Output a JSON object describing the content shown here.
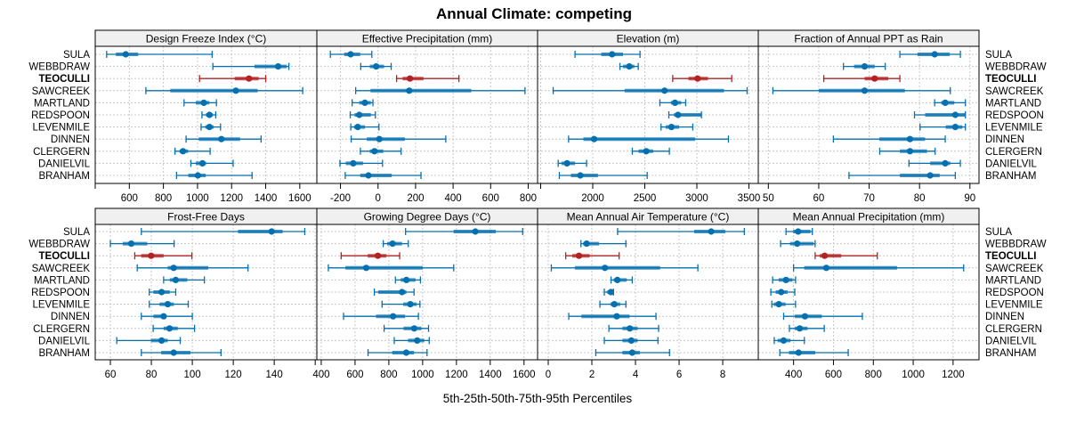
{
  "chart_data": {
    "type": "dot-interval",
    "title": "Annual Climate: competing",
    "xlabel": "5th-25th-50th-75th-95th Percentiles",
    "sites": [
      "SULA",
      "WEBBDRAW",
      "TEOCULLI",
      "SAWCREEK",
      "MARTLAND",
      "REDSPOON",
      "LEVENMILE",
      "DINNEN",
      "CLERGERN",
      "DANIELVIL",
      "BRANHAM"
    ],
    "highlight_site": "TEOCULLI",
    "colors": {
      "default": "#0570b0",
      "highlight": "#b22222",
      "strip": "#f0f0f0",
      "grid": "#c8c8c8"
    },
    "percentile_order": [
      "p5",
      "p25",
      "p50",
      "p75",
      "p95"
    ],
    "panels": [
      {
        "title": "Design Freeze Index (°C)",
        "xlim": [
          400,
          1700
        ],
        "ticks": [
          400,
          600,
          800,
          1000,
          1200,
          1400,
          1600
        ],
        "tick_labels": [
          "",
          "600",
          "800",
          "1000",
          "1200",
          "1400",
          "1600"
        ],
        "values": [
          [
            467,
            521,
            579,
            652,
            1086
          ],
          [
            1090,
            1334,
            1473,
            1524,
            1536
          ],
          [
            1012,
            1218,
            1302,
            1359,
            1400
          ],
          [
            697,
            840,
            1225,
            1353,
            1617
          ],
          [
            921,
            990,
            1037,
            1070,
            1111
          ],
          [
            1026,
            1050,
            1070,
            1090,
            1107
          ],
          [
            1021,
            1045,
            1070,
            1095,
            1135
          ],
          [
            933,
            1007,
            1140,
            1250,
            1373
          ],
          [
            868,
            895,
            915,
            945,
            1074
          ],
          [
            961,
            990,
            1029,
            1050,
            1209
          ],
          [
            877,
            946,
            1002,
            1048,
            1320
          ]
        ]
      },
      {
        "title": "Effective Precipitation (mm)",
        "xlim": [
          -326,
          850
        ],
        "ticks": [
          -200,
          0,
          200,
          400,
          600,
          800
        ],
        "tick_labels": [
          "-200",
          "0",
          "200",
          "400",
          "600",
          "800"
        ],
        "values": [
          [
            -254,
            -180,
            -146,
            -95,
            -33
          ],
          [
            -92,
            -44,
            -10,
            32,
            70
          ],
          [
            99,
            131,
            170,
            242,
            431
          ],
          [
            -119,
            -40,
            166,
            497,
            783
          ],
          [
            -138,
            -100,
            -70,
            -38,
            -27
          ],
          [
            -148,
            -125,
            -100,
            -38,
            -14
          ],
          [
            -145,
            -128,
            -108,
            -69,
            5
          ],
          [
            -143,
            -60,
            7,
            143,
            361
          ],
          [
            -94,
            -44,
            -19,
            28,
            123
          ],
          [
            -203,
            -172,
            -132,
            -80,
            24
          ],
          [
            -175,
            -95,
            -51,
            73,
            229
          ]
        ]
      },
      {
        "title": "Elevation (m)",
        "xlim": [
          1470,
          3590
        ],
        "ticks": [
          1500,
          2000,
          2500,
          3000,
          3500
        ],
        "tick_labels": [
          "",
          "2000",
          "2500",
          "3000",
          "3500"
        ],
        "values": [
          [
            1830,
            2081,
            2186,
            2291,
            2454
          ],
          [
            2261,
            2290,
            2351,
            2400,
            2437
          ],
          [
            2768,
            2919,
            3007,
            3107,
            3335
          ],
          [
            1620,
            2306,
            2690,
            3261,
            3483
          ],
          [
            2645,
            2750,
            2790,
            2850,
            2893
          ],
          [
            2731,
            2780,
            2819,
            3040,
            3044
          ],
          [
            2656,
            2700,
            2756,
            2830,
            2961
          ],
          [
            1768,
            1910,
            2013,
            2984,
            3303
          ],
          [
            2380,
            2440,
            2514,
            2580,
            2736
          ],
          [
            1668,
            1700,
            1753,
            1830,
            1941
          ],
          [
            1679,
            1790,
            1881,
            2050,
            2523
          ]
        ]
      },
      {
        "title": "Fraction of Annual PPT as Rain",
        "xlim": [
          48,
          91.8
        ],
        "ticks": [
          50,
          60,
          70,
          80,
          90
        ],
        "tick_labels": [
          "50",
          "60",
          "70",
          "80",
          "90"
        ],
        "values": [
          [
            76.1,
            79.6,
            83.0,
            86.0,
            88.1
          ],
          [
            64.9,
            67.0,
            69.1,
            71.1,
            73.2
          ],
          [
            61.0,
            69.1,
            71.1,
            73.8,
            76.1
          ],
          [
            50.9,
            60.0,
            69.1,
            77.1,
            86.1
          ],
          [
            83.0,
            84.3,
            85.1,
            86.9,
            89.1
          ],
          [
            79.0,
            81.1,
            87.1,
            89.1,
            89.1
          ],
          [
            80.1,
            85.2,
            87.1,
            88.5,
            89.1
          ],
          [
            62.9,
            72.0,
            78.1,
            81.1,
            85.1
          ],
          [
            72.1,
            76.1,
            78.1,
            81.5,
            83.1
          ],
          [
            77.9,
            82.1,
            85.1,
            86.1,
            88.1
          ],
          [
            66.0,
            76.1,
            82.1,
            84.0,
            87.1
          ]
        ]
      },
      {
        "title": "Frost-Free Days",
        "xlim": [
          52.6,
          160.8
        ],
        "ticks": [
          60,
          80,
          100,
          120,
          140,
          160
        ],
        "tick_labels": [
          "60",
          "80",
          "100",
          "120",
          "140",
          ""
        ],
        "values": [
          [
            75.1,
            122.3,
            138.7,
            144.1,
            154.9
          ],
          [
            60.0,
            66.0,
            70.2,
            78.0,
            91.1
          ],
          [
            71.9,
            75.0,
            79.9,
            86.0,
            99.8
          ],
          [
            73.1,
            88.0,
            90.9,
            107.8,
            127.2
          ],
          [
            86.0,
            89.0,
            91.9,
            97.6,
            105.9
          ],
          [
            79.0,
            81.0,
            85.0,
            89.0,
            91.9
          ],
          [
            79.0,
            84.0,
            88.0,
            91.0,
            98.0
          ],
          [
            75.1,
            81.0,
            86.0,
            87.0,
            100.0
          ],
          [
            80.9,
            86.0,
            88.9,
            92.9,
            101.1
          ],
          [
            63.1,
            79.8,
            85.0,
            88.0,
            94.1
          ],
          [
            75.1,
            84.8,
            90.9,
            99.1,
            114.0
          ]
        ]
      },
      {
        "title": "Growing Degree Days (°C)",
        "xlim": [
          374,
          1680
        ],
        "ticks": [
          400,
          600,
          800,
          1000,
          1200,
          1400,
          1600
        ],
        "tick_labels": [
          "400",
          "600",
          "800",
          "1000",
          "1200",
          "1400",
          "1600"
        ],
        "values": [
          [
            899,
            1183,
            1312,
            1433,
            1592
          ],
          [
            767,
            790,
            822,
            878,
            915
          ],
          [
            518,
            675,
            735,
            786,
            864
          ],
          [
            442,
            543,
            666,
            1001,
            1184
          ],
          [
            839,
            870,
            904,
            958,
            987
          ],
          [
            714,
            737,
            878,
            904,
            949
          ],
          [
            760,
            885,
            927,
            965,
            984
          ],
          [
            532,
            724,
            825,
            896,
            975
          ],
          [
            772,
            887,
            950,
            993,
            1035
          ],
          [
            832,
            913,
            968,
            1010,
            1039
          ],
          [
            677,
            820,
            903,
            949,
            1026
          ]
        ]
      },
      {
        "title": "Mean Annual Air Temperature (°C)",
        "xlim": [
          -0.49,
          9.63
        ],
        "ticks": [
          0,
          2,
          4,
          6,
          8
        ],
        "tick_labels": [
          "0",
          "2",
          "4",
          "6",
          "8"
        ],
        "values": [
          [
            3.18,
            6.69,
            7.47,
            8.12,
            8.99
          ],
          [
            1.5,
            1.6,
            1.76,
            2.33,
            3.56
          ],
          [
            0.8,
            1.1,
            1.41,
            1.9,
            3.25
          ],
          [
            0.14,
            1.22,
            2.6,
            5.13,
            6.86
          ],
          [
            2.88,
            3.0,
            3.17,
            3.6,
            3.85
          ],
          [
            2.57,
            2.7,
            2.87,
            2.97,
            2.99
          ],
          [
            2.37,
            2.85,
            3.03,
            3.3,
            3.56
          ],
          [
            0.94,
            1.52,
            3.14,
            3.73,
            4.94
          ],
          [
            2.78,
            3.4,
            3.74,
            4.1,
            5.06
          ],
          [
            2.57,
            3.4,
            3.81,
            4.1,
            5.03
          ],
          [
            2.18,
            3.4,
            3.85,
            4.2,
            5.56
          ]
        ]
      },
      {
        "title": "Mean Annual Precipitation (mm)",
        "xlim": [
          223,
          1330
        ],
        "ticks": [
          400,
          600,
          800,
          1000,
          1200
        ],
        "tick_labels": [
          "400",
          "600",
          "800",
          "1000",
          "1200"
        ],
        "values": [
          [
            362,
            398,
            423,
            485,
            494
          ],
          [
            335,
            382,
            418,
            500,
            508
          ],
          [
            508,
            531,
            556,
            639,
            820
          ],
          [
            400,
            453,
            564,
            919,
            1253
          ],
          [
            295,
            325,
            362,
            395,
            410
          ],
          [
            286,
            310,
            338,
            370,
            406
          ],
          [
            291,
            300,
            326,
            360,
            410
          ],
          [
            350,
            406,
            457,
            542,
            745
          ],
          [
            379,
            405,
            431,
            470,
            554
          ],
          [
            303,
            320,
            350,
            385,
            454
          ],
          [
            331,
            377,
            425,
            509,
            674
          ]
        ]
      }
    ]
  }
}
